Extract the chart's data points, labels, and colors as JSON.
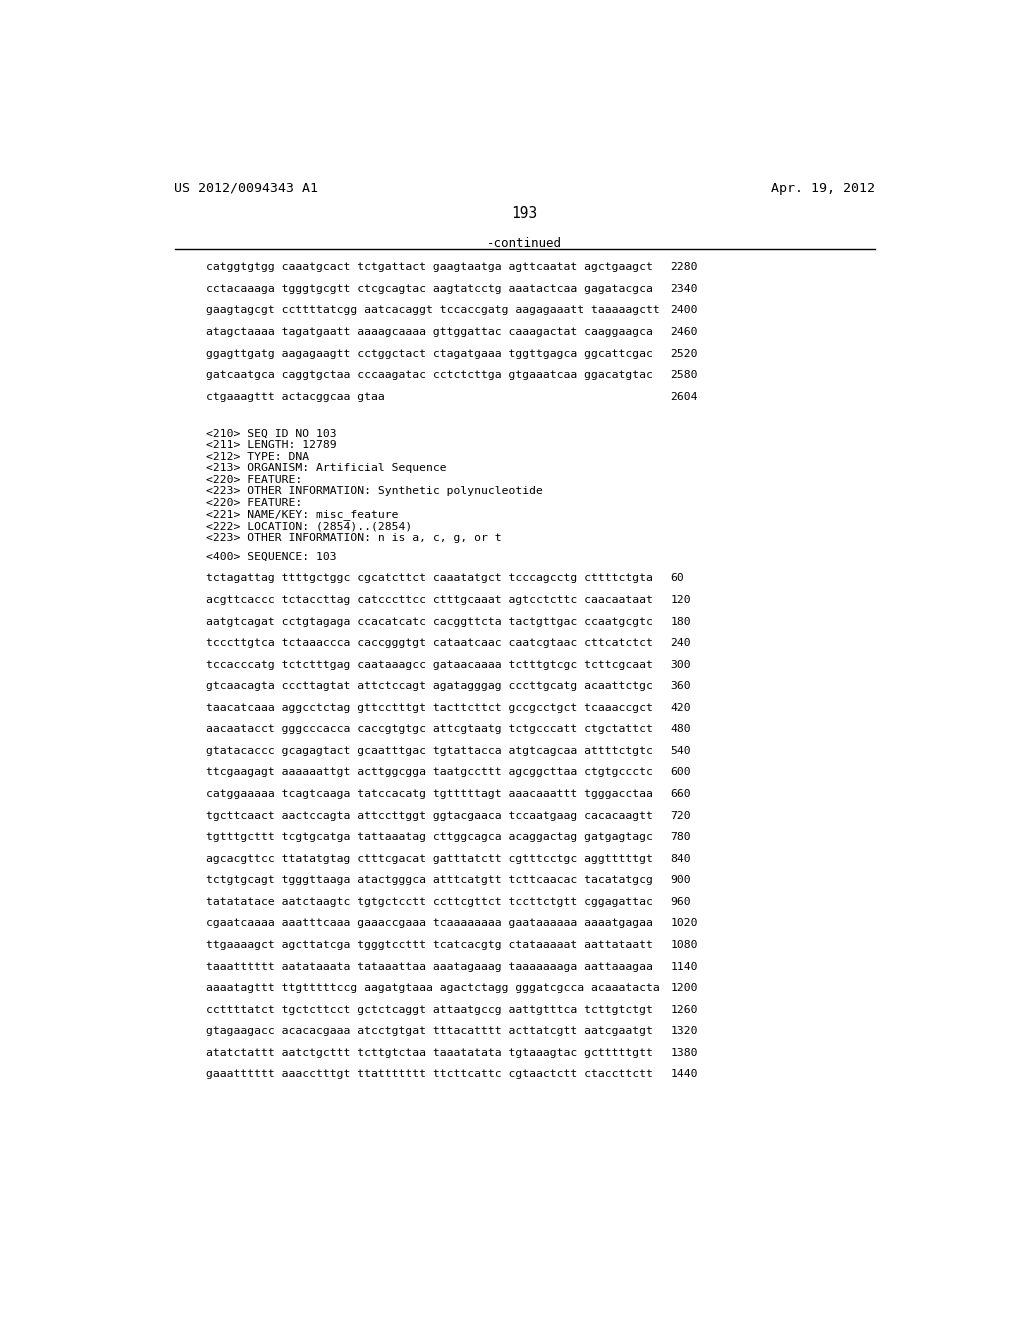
{
  "header_left": "US 2012/0094343 A1",
  "header_right": "Apr. 19, 2012",
  "page_number": "193",
  "continued_label": "-continued",
  "background_color": "#ffffff",
  "text_color": "#000000",
  "sequence_lines_top": [
    [
      "catggtgtgg caaatgcact tctgattact gaagtaatga agttcaatat agctgaagct",
      "2280"
    ],
    [
      "cctacaaaga tgggtgcgtt ctcgcagtac aagtatcctg aaatactcaa gagatacgca",
      "2340"
    ],
    [
      "gaagtagcgt ccttttatcgg aatcacaggt tccaccgatg aagagaaatt taaaaagctt",
      "2400"
    ],
    [
      "atagctaaaa tagatgaatt aaaagcaaaa gttggattac caaagactat caaggaagca",
      "2460"
    ],
    [
      "ggagttgatg aagagaagtt cctggctact ctagatgaaa tggttgagca ggcattcgac",
      "2520"
    ],
    [
      "gatcaatgca caggtgctaa cccaagatac cctctcttga gtgaaatcaa ggacatgtac",
      "2580"
    ],
    [
      "ctgaaagttt actacggcaa gtaa",
      "2604"
    ]
  ],
  "metadata_lines": [
    "<210> SEQ ID NO 103",
    "<211> LENGTH: 12789",
    "<212> TYPE: DNA",
    "<213> ORGANISM: Artificial Sequence",
    "<220> FEATURE:",
    "<223> OTHER INFORMATION: Synthetic polynucleotide",
    "<220> FEATURE:",
    "<221> NAME/KEY: misc_feature",
    "<222> LOCATION: (2854)..(2854)",
    "<223> OTHER INFORMATION: n is a, c, g, or t"
  ],
  "sequence_lines_bottom": [
    [
      "tctagattag ttttgctggc cgcatcttct caaatatgct tcccagcctg cttttctgta",
      "60"
    ],
    [
      "acgttcaccc tctaccttag catcccttcc ctttgcaaat agtcctcttc caacaataat",
      "120"
    ],
    [
      "aatgtcagat cctgtagaga ccacatcatc cacggttcta tactgttgac ccaatgcgtc",
      "180"
    ],
    [
      "tcccttgtca tctaaaccca caccgggtgt cataatcaac caatcgtaac cttcatctct",
      "240"
    ],
    [
      "tccacccatg tctctttgag caataaagcc gataacaaaa tctttgtcgc tcttcgcaat",
      "300"
    ],
    [
      "gtcaacagta cccttagtat attctccagt agatagggag cccttgcatg acaattctgc",
      "360"
    ],
    [
      "taacatcaaa aggcctctag gttcctttgt tacttcttct gccgcctgct tcaaaccgct",
      "420"
    ],
    [
      "aacaatacct gggcccacca caccgtgtgc attcgtaatg tctgcccatt ctgctattct",
      "480"
    ],
    [
      "gtatacaccc gcagagtact gcaatttgac tgtattacca atgtcagcaa attttctgtc",
      "540"
    ],
    [
      "ttcgaagagt aaaaaattgt acttggcgga taatgccttt agcggcttaa ctgtgccctc",
      "600"
    ],
    [
      "catggaaaaa tcagtcaaga tatccacatg tgtttttagt aaacaaattt tgggacctaa",
      "660"
    ],
    [
      "tgcttcaact aactccagta attccttggt ggtacgaaca tccaatgaag cacacaagtt",
      "720"
    ],
    [
      "tgtttgcttt tcgtgcatga tattaaatag cttggcagca acaggactag gatgagtagc",
      "780"
    ],
    [
      "agcacgttcc ttatatgtag ctttcgacat gatttatctt cgtttcctgc aggtttttgt",
      "840"
    ],
    [
      "tctgtgcagt tgggttaaga atactgggca atttcatgtt tcttcaacac tacatatgcg",
      "900"
    ],
    [
      "tatatatace aatctaagtc tgtgctcctt ccttcgttct tccttctgtt cggagattac",
      "960"
    ],
    [
      "cgaatcaaaa aaatttcaaa gaaaccgaaa tcaaaaaaaa gaataaaaaa aaaatgagaa",
      "1020"
    ],
    [
      "ttgaaaagct agcttatcga tgggtccttt tcatcacgtg ctataaaaat aattataatt",
      "1080"
    ],
    [
      "taaatttttt aatataaata tataaattaa aaatagaaag taaaaaaaga aattaaagaa",
      "1140"
    ],
    [
      "aaaatagttt ttgtttttccg aagatgtaaa agactctagg gggatcgcca acaaatacta",
      "1200"
    ],
    [
      "ccttttatct tgctcttcct gctctcaggt attaatgccg aattgtttca tcttgtctgt",
      "1260"
    ],
    [
      "gtagaagacc acacacgaaa atcctgtgat tttacatttt acttatcgtt aatcgaatgt",
      "1320"
    ],
    [
      "atatctattt aatctgcttt tcttgtctaa taaatatata tgtaaagtac gctttttgtt",
      "1380"
    ],
    [
      "gaaatttttt aaacctttgt ttattttttt ttcttcattc cgtaactctt ctaccttctt",
      "1440"
    ]
  ]
}
